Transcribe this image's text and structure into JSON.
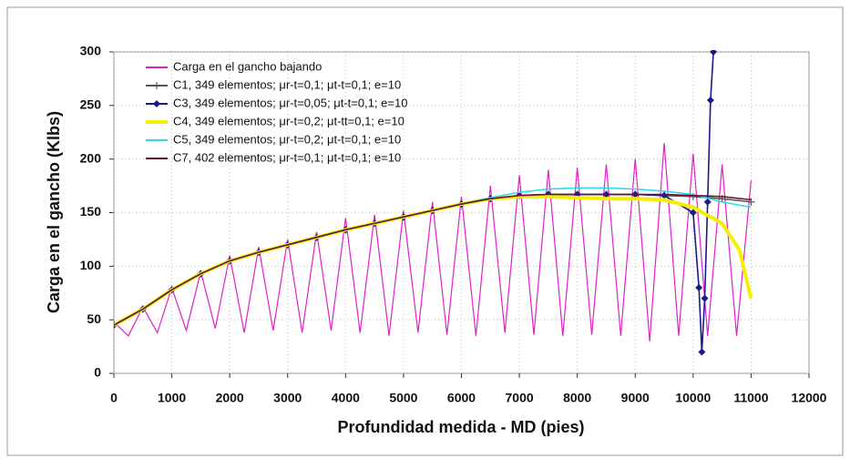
{
  "chart_data": {
    "type": "line",
    "xlabel": "Profundidad medida - MD (pies)",
    "ylabel": "Carga en el gancho (Klbs)",
    "xlim": [
      0,
      12000
    ],
    "xticks": [
      0,
      1000,
      2000,
      3000,
      4000,
      5000,
      6000,
      7000,
      8000,
      9000,
      10000,
      11000,
      12000
    ],
    "ylim": [
      0,
      300
    ],
    "yticks": [
      0,
      50,
      100,
      150,
      200,
      250,
      300
    ],
    "grid": true,
    "legend": "upper left",
    "series": [
      {
        "name": "Carga en el gancho bajando",
        "color": "#e020c8",
        "marker": "none",
        "x": [
          0,
          250,
          500,
          750,
          1000,
          1250,
          1500,
          1750,
          2000,
          2250,
          2500,
          2750,
          3000,
          3250,
          3500,
          3750,
          4000,
          4250,
          4500,
          4750,
          5000,
          5250,
          5500,
          5750,
          6000,
          6250,
          6500,
          6750,
          7000,
          7250,
          7500,
          7750,
          8000,
          8250,
          8500,
          8750,
          9000,
          9250,
          9500,
          9750,
          10000,
          10250,
          10500,
          10750,
          11000
        ],
        "values": [
          48,
          35,
          62,
          38,
          80,
          40,
          95,
          42,
          110,
          38,
          118,
          40,
          125,
          38,
          132,
          40,
          145,
          38,
          148,
          35,
          152,
          38,
          160,
          36,
          165,
          35,
          175,
          38,
          185,
          36,
          190,
          35,
          192,
          36,
          195,
          35,
          200,
          30,
          215,
          35,
          205,
          35,
          195,
          35,
          180
        ]
      },
      {
        "name": "C1, 349 elementos; μr-t=0,1; μt-t=0,1; e=10",
        "color": "#555555",
        "marker": "plus",
        "x": [
          0,
          500,
          1000,
          1500,
          2000,
          2500,
          3000,
          3500,
          4000,
          4500,
          5000,
          5500,
          6000,
          6500,
          7000,
          7500,
          8000,
          8500,
          9000,
          9500,
          10000,
          10500,
          11000
        ],
        "values": [
          45,
          60,
          78,
          93,
          105,
          113,
          120,
          127,
          134,
          140,
          146,
          152,
          158,
          163,
          166,
          167,
          167,
          167,
          167,
          166,
          165,
          163,
          160
        ]
      },
      {
        "name": "C3, 349 elementos; μr-t=0,05; μt-t=0,1; e=10",
        "color": "#1a1a8c",
        "marker": "diamond",
        "x": [
          0,
          500,
          1000,
          1500,
          2000,
          2500,
          3000,
          3500,
          4000,
          4500,
          5000,
          5500,
          6000,
          6500,
          7000,
          7500,
          8000,
          8500,
          9000,
          9500,
          10000,
          10100,
          10150,
          10200,
          10250,
          10300,
          10350
        ],
        "values": [
          45,
          60,
          78,
          93,
          105,
          113,
          120,
          127,
          134,
          140,
          146,
          152,
          158,
          163,
          166,
          167,
          167,
          167,
          167,
          166,
          150,
          80,
          20,
          70,
          160,
          255,
          300
        ]
      },
      {
        "name": "C4, 349 elementos; μr-t=0,2; μt-tt=0,1; e=10",
        "color": "#f5f000",
        "marker": "none",
        "x": [
          0,
          500,
          1000,
          1500,
          2000,
          2500,
          3000,
          3500,
          4000,
          4500,
          5000,
          5500,
          6000,
          6500,
          7000,
          7500,
          8000,
          8500,
          9000,
          9500,
          10000,
          10500,
          10800,
          11000
        ],
        "values": [
          45,
          60,
          78,
          93,
          105,
          113,
          120,
          127,
          134,
          140,
          146,
          152,
          158,
          163,
          165,
          165,
          164,
          163,
          163,
          162,
          155,
          140,
          115,
          70
        ]
      },
      {
        "name": "C5, 349 elementos; μr-t=0,2; μt-t=0,1; e=10",
        "color": "#30d8e8",
        "marker": "none",
        "x": [
          0,
          500,
          1000,
          1500,
          2000,
          2500,
          3000,
          3500,
          4000,
          4500,
          5000,
          5500,
          6000,
          6500,
          7000,
          7500,
          8000,
          8500,
          9000,
          9500,
          10000,
          10500,
          11000
        ],
        "values": [
          45,
          60,
          78,
          93,
          105,
          113,
          120,
          127,
          134,
          140,
          146,
          152,
          158,
          164,
          169,
          172,
          173,
          173,
          172,
          170,
          167,
          160,
          155
        ]
      },
      {
        "name": "C7, 402 elementos; μr-t=0,1; μt-t=0,1; e=10",
        "color": "#6b1030",
        "marker": "none",
        "x": [
          0,
          500,
          1000,
          1500,
          2000,
          2500,
          3000,
          3500,
          4000,
          4500,
          5000,
          5500,
          6000,
          6500,
          7000,
          7500,
          8000,
          8500,
          9000,
          9500,
          10000,
          10500,
          11000
        ],
        "values": [
          45,
          60,
          78,
          93,
          105,
          113,
          120,
          127,
          134,
          140,
          146,
          152,
          158,
          163,
          166,
          167,
          167,
          167,
          167,
          167,
          166,
          165,
          162
        ]
      }
    ]
  }
}
